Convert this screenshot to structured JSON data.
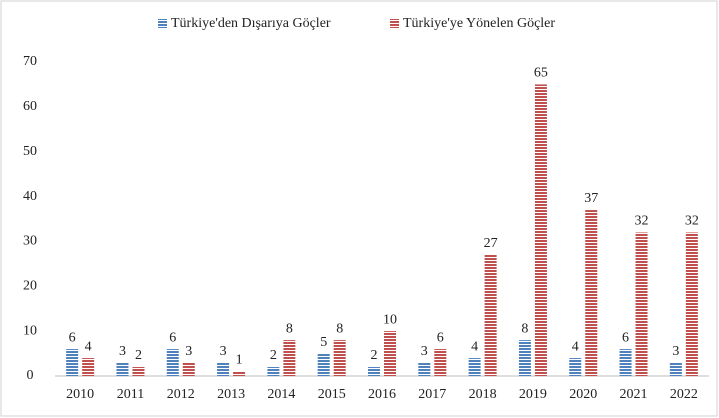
{
  "chart_data": {
    "type": "bar",
    "categories": [
      "2010",
      "2011",
      "2012",
      "2013",
      "2014",
      "2015",
      "2016",
      "2017",
      "2018",
      "2019",
      "2020",
      "2021",
      "2022"
    ],
    "series": [
      {
        "name": "Türkiye'den Dışarıya Göçler",
        "color": "#4f81bd",
        "values": [
          6,
          3,
          6,
          3,
          2,
          5,
          2,
          3,
          4,
          8,
          4,
          6,
          3
        ]
      },
      {
        "name": "Türkiye'ye Yönelen Göçler",
        "color": "#c0504d",
        "values": [
          4,
          2,
          3,
          1,
          8,
          8,
          10,
          6,
          27,
          65,
          37,
          32,
          32
        ]
      }
    ],
    "ylim": [
      0,
      70
    ],
    "yticks": [
      0,
      10,
      20,
      30,
      40,
      50,
      60,
      70
    ],
    "grid": false,
    "legend": "top"
  }
}
